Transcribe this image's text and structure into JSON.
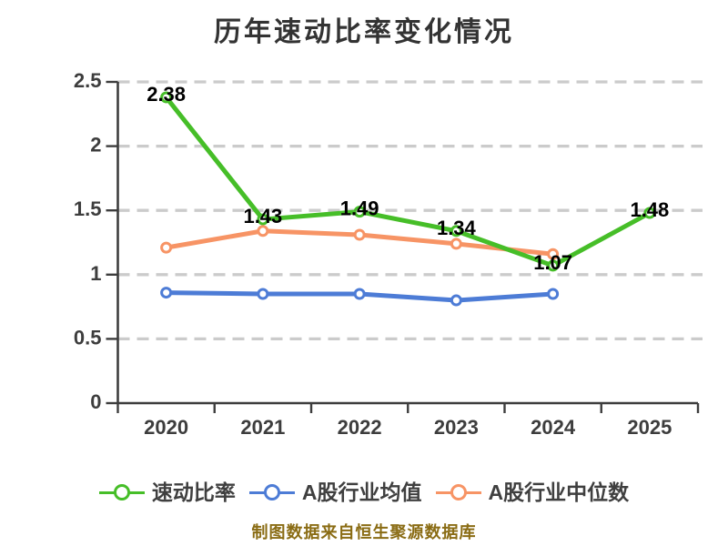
{
  "title": "历年速动比率变化情况",
  "caption": "制图数据来自恒生聚源数据库",
  "colors": {
    "quick_ratio": "#46be28",
    "industry_mean": "#4d7cd6",
    "industry_median": "#f79465",
    "grid": "#cbcbcb",
    "axis": "#3d3d3d",
    "point_label": "#000000",
    "title_text": "#333333",
    "caption_text": "#8a6c14"
  },
  "chart_data": {
    "type": "line",
    "title": "历年速动比率变化情况",
    "categories": [
      "2020",
      "2021",
      "2022",
      "2023",
      "2024",
      "2025"
    ],
    "xlabel": "",
    "ylabel": "",
    "ylim": [
      0,
      2.5
    ],
    "yticks": [
      {
        "value": 0,
        "label": "0"
      },
      {
        "value": 0.5,
        "label": "0.5"
      },
      {
        "value": 1,
        "label": "1"
      },
      {
        "value": 1.5,
        "label": "1.5"
      },
      {
        "value": 2,
        "label": "2"
      },
      {
        "value": 2.5,
        "label": "2.5"
      }
    ],
    "grid": "horizontal dashed",
    "legend_position": "bottom",
    "series": [
      {
        "name": "速动比率",
        "color": "#46be28",
        "values": [
          2.38,
          1.43,
          1.49,
          1.34,
          1.07,
          1.48
        ],
        "point_labels": [
          "2.38",
          "1.43",
          "1.49",
          "1.34",
          "1.07",
          "1.48"
        ],
        "show_point_labels": true
      },
      {
        "name": "A股行业均值",
        "color": "#4d7cd6",
        "values": [
          0.86,
          0.85,
          0.85,
          0.8,
          0.85,
          null
        ],
        "show_point_labels": false
      },
      {
        "name": "A股行业中位数",
        "color": "#f79465",
        "values": [
          1.21,
          1.34,
          1.31,
          1.24,
          1.16,
          null
        ],
        "show_point_labels": false
      }
    ],
    "source_note": "制图数据来自恒生聚源数据库"
  }
}
